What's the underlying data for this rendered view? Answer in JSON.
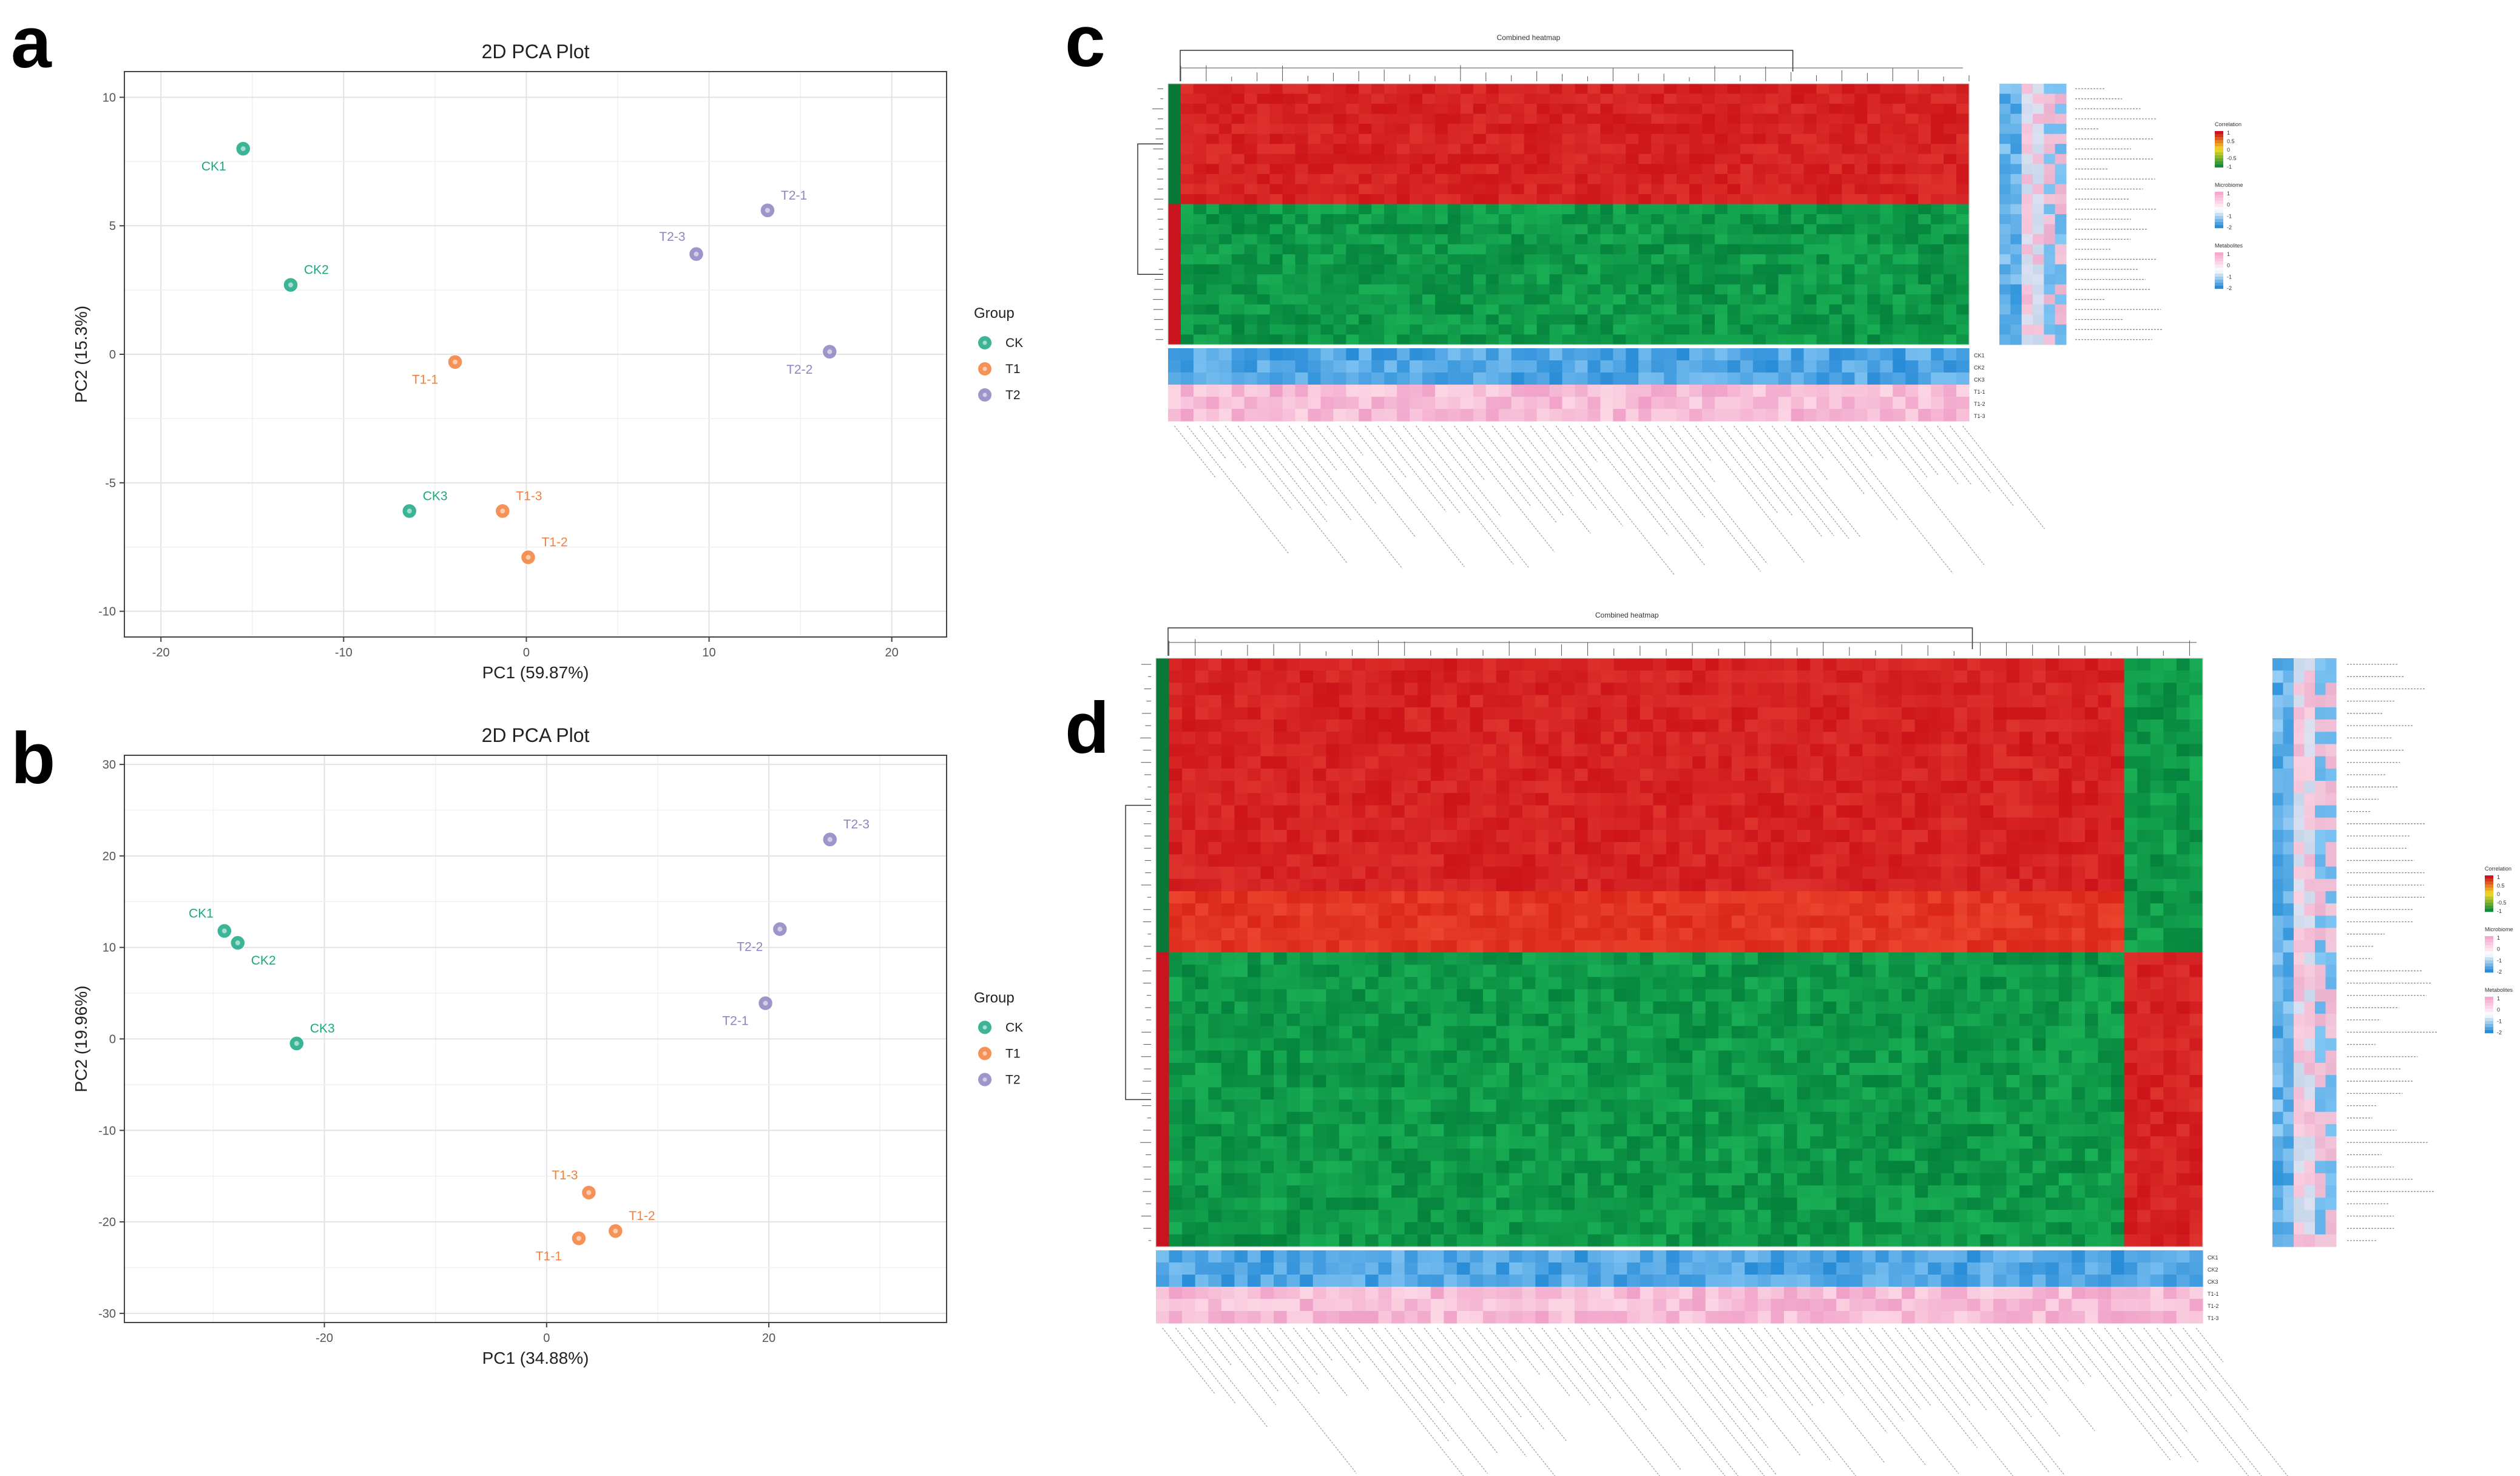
{
  "panels": {
    "a": "a",
    "b": "b",
    "c": "c",
    "d": "d"
  },
  "colors": {
    "CK": "#1ba784",
    "T1": "#f37f3a",
    "T2": "#8f83c2",
    "hm_red": "#d7191c",
    "hm_green": "#0a8a3b",
    "hm_blue": "#2b8cd8",
    "hm_pink": "#f6a9cf"
  },
  "chart_data": [
    {
      "id": "a",
      "type": "scatter",
      "title": "2D PCA Plot",
      "xlabel": "PC1 (59.87%)",
      "ylabel": "PC2 (15.3%)",
      "xlim": [
        -22,
        23
      ],
      "ylim": [
        -11,
        11
      ],
      "xticks": [
        -20,
        -10,
        0,
        10,
        20
      ],
      "yticks": [
        -10,
        -5,
        0,
        5,
        10
      ],
      "legend": {
        "title": "Group",
        "entries": [
          "CK",
          "T1",
          "T2"
        ],
        "placement": "right"
      },
      "points": [
        {
          "label": "CK1",
          "group": "CK",
          "x": -15.5,
          "y": 8.0,
          "label_pos": "below-left"
        },
        {
          "label": "CK2",
          "group": "CK",
          "x": -12.9,
          "y": 2.7,
          "label_pos": "above-right"
        },
        {
          "label": "CK3",
          "group": "CK",
          "x": -6.4,
          "y": -6.1,
          "label_pos": "above-right"
        },
        {
          "label": "T1-1",
          "group": "T1",
          "x": -3.9,
          "y": -0.3,
          "label_pos": "below-left"
        },
        {
          "label": "T1-3",
          "group": "T1",
          "x": -1.3,
          "y": -6.1,
          "label_pos": "above-right"
        },
        {
          "label": "T1-2",
          "group": "T1",
          "x": 0.1,
          "y": -7.9,
          "label_pos": "above-right"
        },
        {
          "label": "T2-3",
          "group": "T2",
          "x": 9.3,
          "y": 3.9,
          "label_pos": "above-left"
        },
        {
          "label": "T2-1",
          "group": "T2",
          "x": 13.2,
          "y": 5.6,
          "label_pos": "above-right"
        },
        {
          "label": "T2-2",
          "group": "T2",
          "x": 16.6,
          "y": 0.1,
          "label_pos": "below-left"
        }
      ]
    },
    {
      "id": "b",
      "type": "scatter",
      "title": "2D PCA Plot",
      "xlabel": "PC1 (34.88%)",
      "ylabel": "PC2 (19.96%)",
      "xlim": [
        -38,
        36
      ],
      "ylim": [
        -31,
        31
      ],
      "xticks": [
        -20,
        0,
        20
      ],
      "yticks": [
        -30,
        -20,
        -10,
        0,
        10,
        20,
        30
      ],
      "legend": {
        "title": "Group",
        "entries": [
          "CK",
          "T1",
          "T2"
        ],
        "placement": "right"
      },
      "points": [
        {
          "label": "CK1",
          "group": "CK",
          "x": -29.0,
          "y": 11.8,
          "label_pos": "above-left"
        },
        {
          "label": "CK2",
          "group": "CK",
          "x": -27.8,
          "y": 10.5,
          "label_pos": "below-right"
        },
        {
          "label": "CK3",
          "group": "CK",
          "x": -22.5,
          "y": -0.5,
          "label_pos": "above-right"
        },
        {
          "label": "T1-3",
          "group": "T1",
          "x": 3.8,
          "y": -16.8,
          "label_pos": "above-left"
        },
        {
          "label": "T1-2",
          "group": "T1",
          "x": 6.2,
          "y": -21.0,
          "label_pos": "above-right"
        },
        {
          "label": "T1-1",
          "group": "T1",
          "x": 2.9,
          "y": -21.8,
          "label_pos": "below-left"
        },
        {
          "label": "T2-3",
          "group": "T2",
          "x": 25.5,
          "y": 21.8,
          "label_pos": "above-right"
        },
        {
          "label": "T2-2",
          "group": "T2",
          "x": 21.0,
          "y": 12.0,
          "label_pos": "below-left"
        },
        {
          "label": "T2-1",
          "group": "T2",
          "x": 19.7,
          "y": 3.9,
          "label_pos": "below-left"
        }
      ]
    },
    {
      "id": "c",
      "type": "heatmap",
      "title": "Combined heatmap",
      "rows": 26,
      "cols": 63,
      "red_rows": 12,
      "side_cols": 6,
      "sample_rows": [
        "CK1",
        "CK2",
        "CK3",
        "T1-1",
        "T1-2",
        "T1-3"
      ],
      "legends": [
        "Correlation",
        "Microbiome",
        "Metabolites"
      ],
      "legend_scale_correlation": [
        "1",
        "0.5",
        "0",
        "-0.5",
        "-1"
      ],
      "legend_scale_abundance": [
        "1",
        "0",
        "-1",
        "-2"
      ]
    },
    {
      "id": "d",
      "type": "heatmap",
      "title": "Combined heatmap",
      "rows": 48,
      "cols": 80,
      "red_rows": 24,
      "side_cols": 6,
      "sample_rows": [
        "CK1",
        "CK2",
        "CK3",
        "T1-1",
        "T1-2",
        "T1-3"
      ],
      "legends": [
        "Correlation",
        "Microbiome",
        "Metabolites"
      ],
      "legend_scale_correlation": [
        "1",
        "0.5",
        "0",
        "-0.5",
        "-1"
      ],
      "legend_scale_abundance": [
        "1",
        "0",
        "-1",
        "-2"
      ]
    }
  ]
}
